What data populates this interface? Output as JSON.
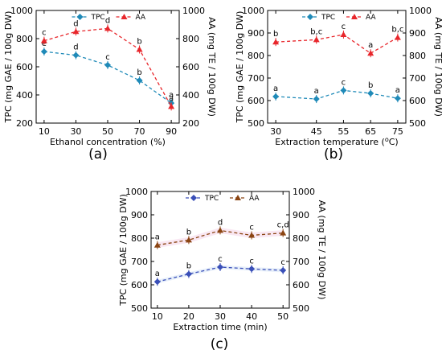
{
  "colors": {
    "tpc": "#1f8ab8",
    "aa": "#e8262b",
    "aa_c": "#8b4513",
    "tpc_c": "#3a4fb8",
    "band_a": "#f6c4c4",
    "band_b": "#f3cfe6"
  },
  "chart_data": [
    {
      "type": "line",
      "caption": "(a)",
      "xlabel": "Ethanol concentration (%)",
      "ylabel_left": "TPC (mg GAE / 100g DW)",
      "ylabel_right": "AA (mg TE / 100g DW)",
      "x": [
        10,
        30,
        50,
        70,
        90
      ],
      "xticks": [
        "10",
        "30",
        "50",
        "70",
        "90"
      ],
      "xlim": [
        5,
        95
      ],
      "ylim": [
        200,
        1000
      ],
      "yticks": [
        "200",
        "400",
        "600",
        "800",
        "1000"
      ],
      "legend_position": "top",
      "series": [
        {
          "name": "TPC",
          "marker": "diamond",
          "values": [
            708,
            682,
            612,
            503,
            342
          ],
          "letters": [
            "e",
            "d",
            "c",
            "b",
            "a"
          ]
        },
        {
          "name": "AA",
          "marker": "triangle",
          "values": [
            785,
            850,
            872,
            723,
            318
          ],
          "letters": [
            "c",
            "d",
            "d",
            "b",
            "a"
          ]
        }
      ]
    },
    {
      "type": "line",
      "caption": "(b)",
      "xlabel": "Extraction temperature (",
      "xlabel_unit": "C)",
      "xlabel_sup": "o",
      "ylabel_left": "TPC (mg GAE / 100g DW)",
      "ylabel_right": "AA (mg TE / 100g DW)",
      "x": [
        30,
        45,
        55,
        65,
        75
      ],
      "xticks": [
        "30",
        "45",
        "55",
        "65",
        "75"
      ],
      "xlim": [
        27,
        78
      ],
      "ylim": [
        500,
        1000
      ],
      "yticks": [
        "500",
        "600",
        "700",
        "800",
        "900",
        "1000"
      ],
      "legend_position": "top",
      "series": [
        {
          "name": "TPC",
          "marker": "diamond",
          "values": [
            618,
            607,
            645,
            632,
            610
          ],
          "letters": [
            "a",
            "a",
            "c",
            "b",
            "a"
          ]
        },
        {
          "name": "AA",
          "marker": "triangle",
          "values": [
            860,
            870,
            893,
            810,
            880
          ],
          "letters": [
            "b",
            "b,c",
            "c",
            "a",
            "b,c"
          ]
        }
      ]
    },
    {
      "type": "line",
      "caption": "(c)",
      "xlabel": "Extraction time (min)",
      "ylabel_left": "TPC (mg GAE / 100g DW)",
      "ylabel_right": "AA (mg TE / 100g DW)",
      "x": [
        10,
        20,
        30,
        40,
        50
      ],
      "xticks": [
        "10",
        "20",
        "30",
        "40",
        "50"
      ],
      "xlim": [
        8,
        52
      ],
      "ylim": [
        500,
        1000
      ],
      "yticks": [
        "500",
        "600",
        "700",
        "800",
        "900",
        "1000"
      ],
      "legend_position": "top",
      "series": [
        {
          "name": "TPC",
          "marker": "diamond",
          "values": [
            613,
            646,
            676,
            668,
            662
          ],
          "letters": [
            "a",
            "b",
            "c",
            "c",
            "c"
          ]
        },
        {
          "name": "AA",
          "marker": "triangle",
          "values": [
            770,
            792,
            833,
            812,
            822
          ],
          "letters": [
            "a",
            "b",
            "d",
            "c",
            "c,d"
          ]
        }
      ]
    }
  ]
}
